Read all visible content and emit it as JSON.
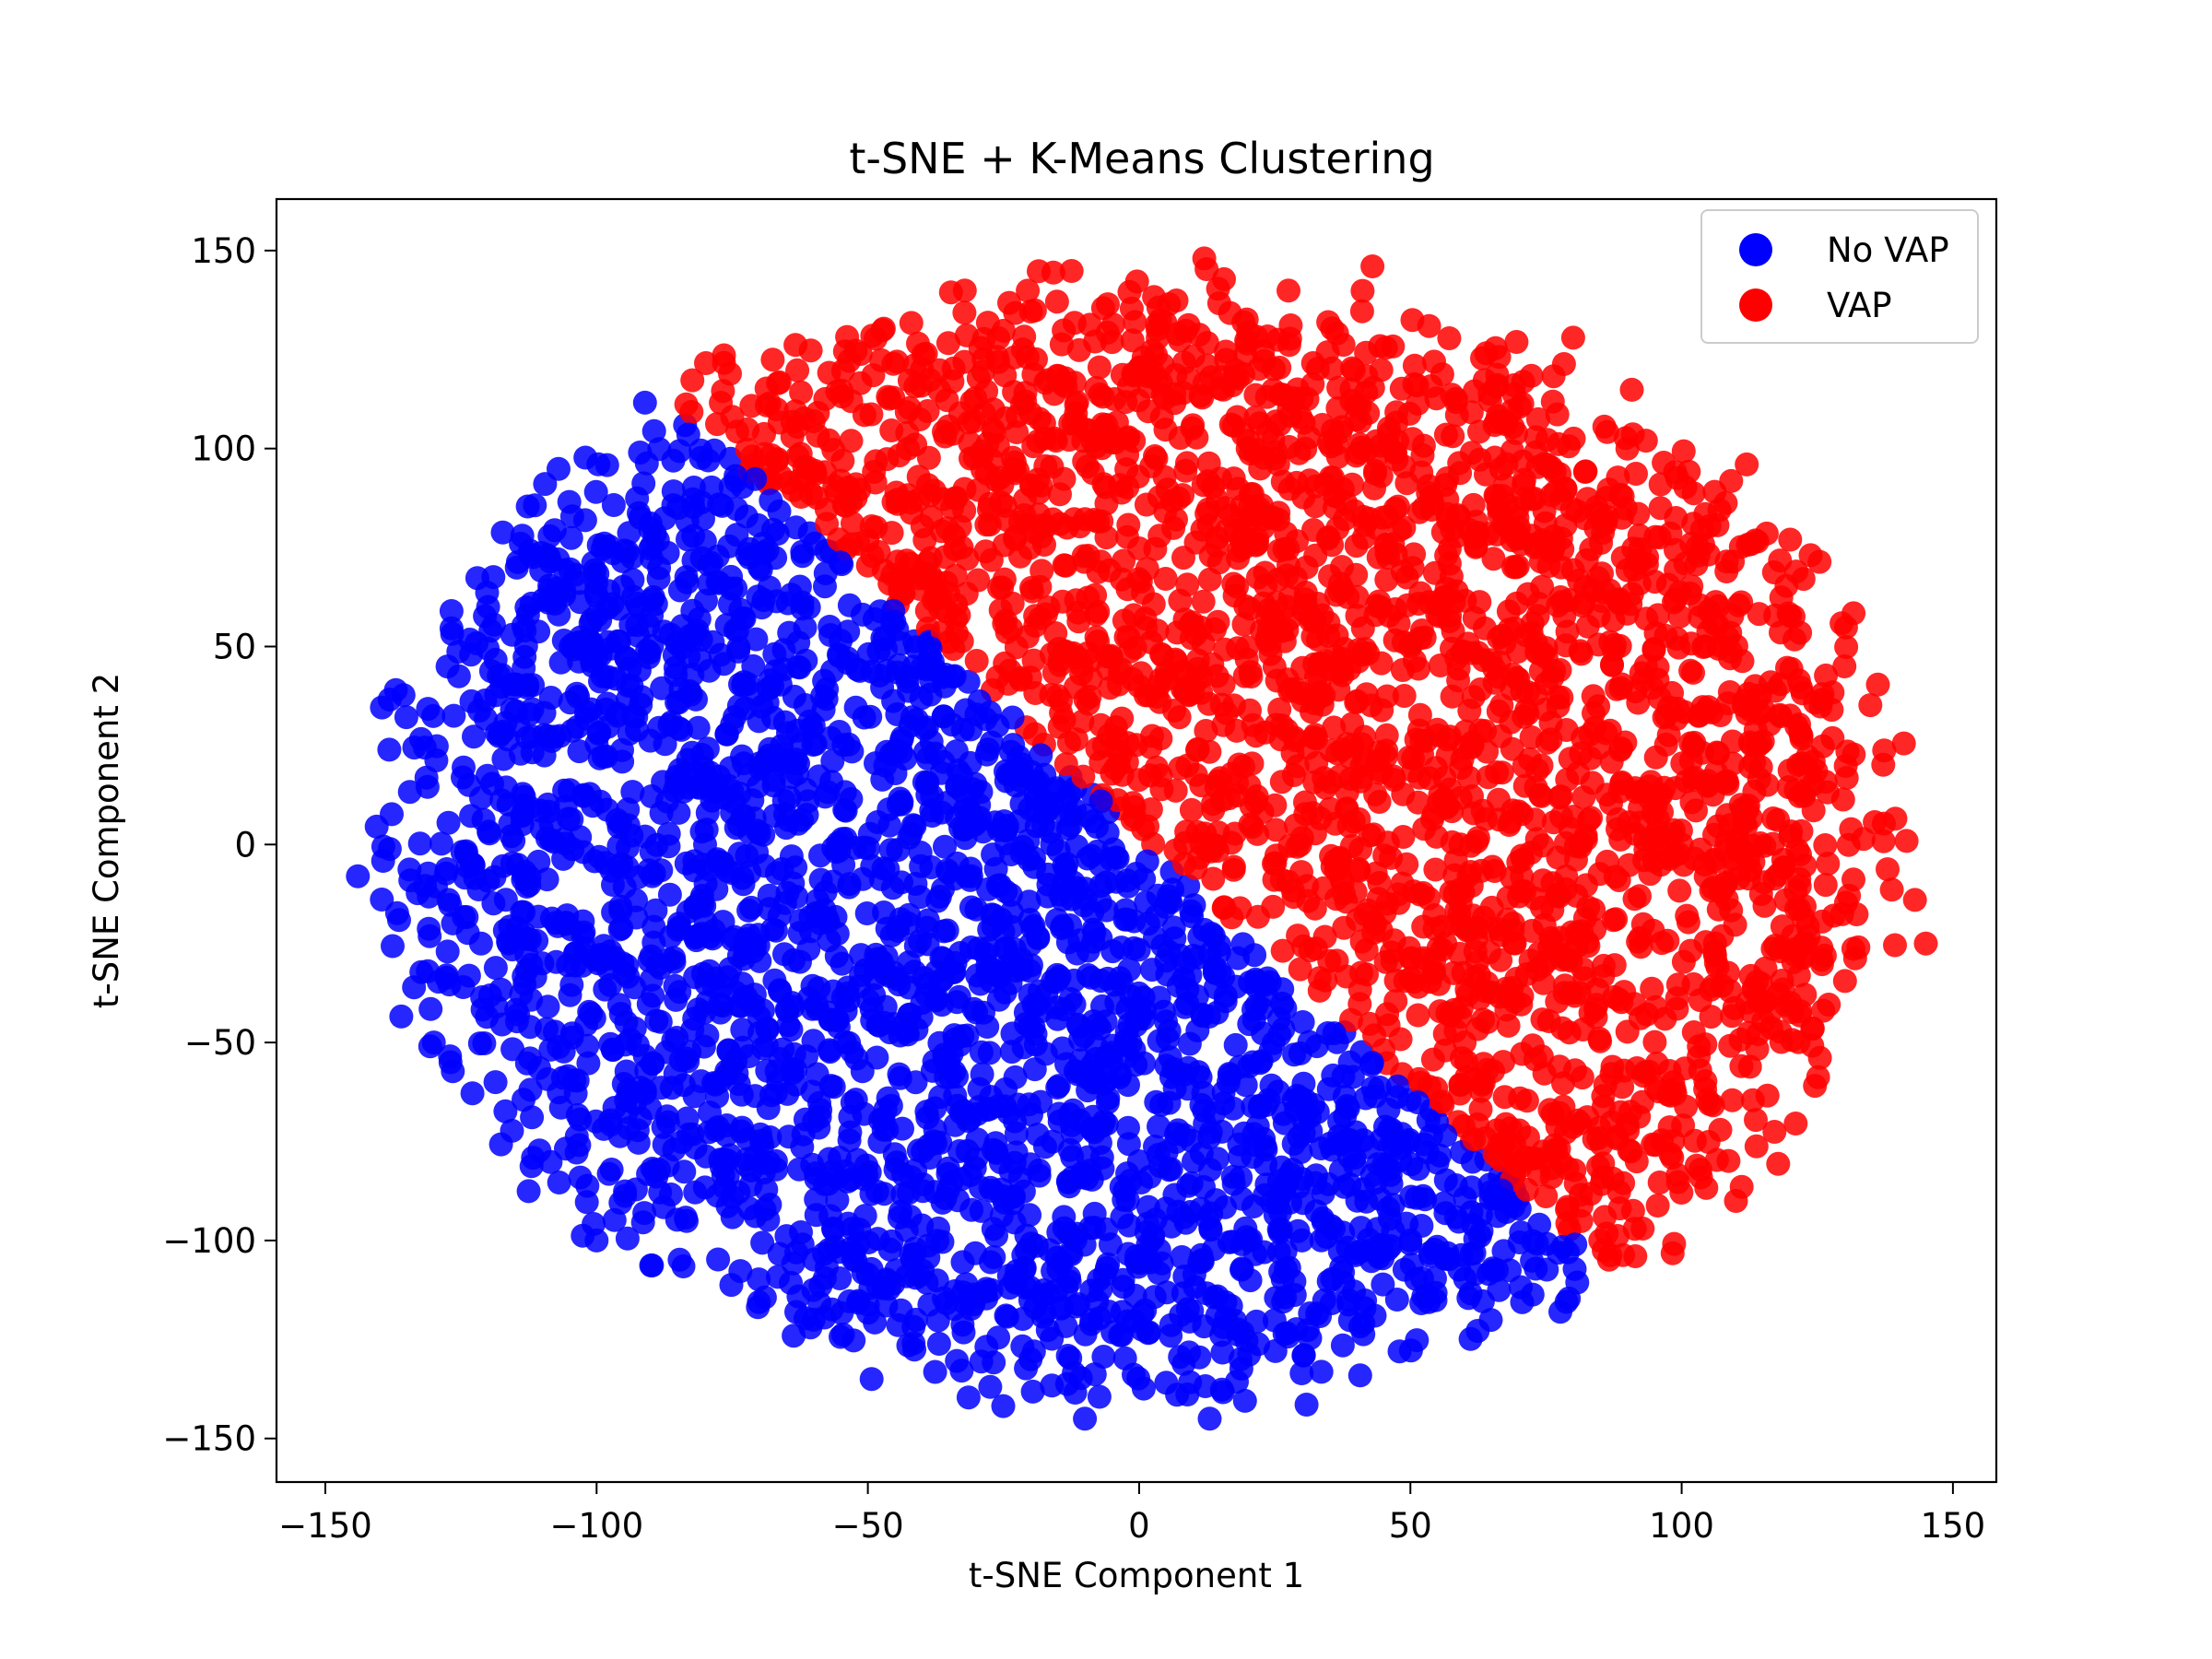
{
  "chart_data": {
    "type": "scatter",
    "title": "t-SNE + K-Means Clustering",
    "xlabel": "t-SNE Component 1",
    "ylabel": "t-SNE Component 2",
    "xlim": [
      -159,
      158
    ],
    "ylim": [
      -161,
      163
    ],
    "xticks": [
      -150,
      -100,
      -50,
      0,
      50,
      100,
      150
    ],
    "yticks": [
      -150,
      -100,
      -50,
      0,
      50,
      100,
      150
    ],
    "xtick_labels": [
      "−150",
      "−100",
      "−50",
      "0",
      "50",
      "100",
      "150"
    ],
    "ytick_labels": [
      "−150",
      "−100",
      "−50",
      "0",
      "50",
      "100",
      "150"
    ],
    "grid": false,
    "legend_position": "top-right",
    "decision_boundary": {
      "description": "clusters separated along a diagonal line",
      "points": [
        [
          -78,
          102
        ],
        [
          80,
          -100
        ]
      ]
    },
    "cloud_extent": {
      "x": [
        -145,
        145
      ],
      "y": [
        -146,
        148
      ]
    },
    "series": [
      {
        "name": "No VAP",
        "color": "#0000ff",
        "sample_points": [
          [
            -137,
            39
          ],
          [
            -144,
            -8
          ],
          [
            -130,
            -50
          ],
          [
            -92,
            99
          ],
          [
            -120,
            60
          ],
          [
            -100,
            -100
          ],
          [
            -60,
            -120
          ],
          [
            -10,
            -145
          ],
          [
            13,
            -145
          ],
          [
            48,
            -128
          ],
          [
            79,
            -103
          ],
          [
            -80,
            0
          ],
          [
            -40,
            -40
          ],
          [
            -60,
            30
          ],
          [
            0,
            -80
          ],
          [
            30,
            -100
          ],
          [
            -20,
            -130
          ],
          [
            -110,
            -30
          ],
          [
            -70,
            70
          ],
          [
            50,
            -100
          ]
        ]
      },
      {
        "name": "VAP",
        "color": "#ff0000",
        "sample_points": [
          [
            -75,
            108
          ],
          [
            12,
            148
          ],
          [
            43,
            146
          ],
          [
            80,
            128
          ],
          [
            143,
            -14
          ],
          [
            145,
            -25
          ],
          [
            112,
            96
          ],
          [
            120,
            77
          ],
          [
            130,
            45
          ],
          [
            110,
            -90
          ],
          [
            85,
            -100
          ],
          [
            100,
            0
          ],
          [
            50,
            50
          ],
          [
            20,
            100
          ],
          [
            70,
            80
          ],
          [
            -40,
            120
          ],
          [
            0,
            40
          ],
          [
            60,
            -50
          ],
          [
            120,
            -40
          ],
          [
            90,
            100
          ]
        ]
      }
    ]
  }
}
